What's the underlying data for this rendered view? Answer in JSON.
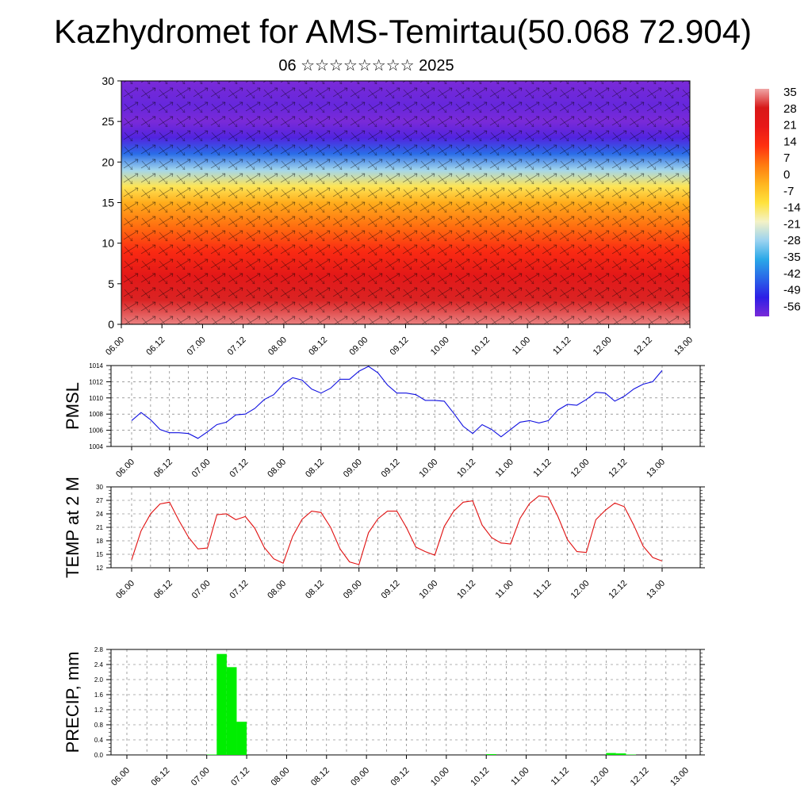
{
  "page": {
    "title": "Kazhydromet for AMS-Temirtau(50.068 72.904)",
    "subtitle": "06 ☆☆☆☆☆☆☆☆ 2025"
  },
  "colorbar": {
    "labels": [
      "35",
      "28",
      "21",
      "14",
      "7",
      "0",
      "-7",
      "-14",
      "-21",
      "-28",
      "-35",
      "-42",
      "-49",
      "-56"
    ],
    "min": -56,
    "max": 35,
    "stops": [
      "#7a2ad8",
      "#2d1ee6",
      "#2a66e8",
      "#2aa8e8",
      "#9bd3f0",
      "#f4f2c6",
      "#ffe23b",
      "#ffb41e",
      "#ff7a10",
      "#ff3010",
      "#e81818",
      "#d81818",
      "#f0a6a6"
    ]
  },
  "chart_data": [
    {
      "type": "heatmap",
      "name": "level-temperature-wind",
      "ylim": [
        0,
        30
      ],
      "yticks": [
        0,
        5,
        10,
        15,
        20,
        25,
        30
      ],
      "xticks": [
        "06.00",
        "06.12",
        "07.00",
        "07.12",
        "08.00",
        "08.12",
        "09.00",
        "09.12",
        "10.00",
        "10.12",
        "11.00",
        "11.12",
        "12.00",
        "12.12",
        "13.00"
      ],
      "profile": [
        {
          "level": 0,
          "value": 33
        },
        {
          "level": 3,
          "value": 28
        },
        {
          "level": 6,
          "value": 22
        },
        {
          "level": 9,
          "value": 14
        },
        {
          "level": 12,
          "value": 6
        },
        {
          "level": 15,
          "value": -2
        },
        {
          "level": 17,
          "value": -12
        },
        {
          "level": 19,
          "value": -25
        },
        {
          "level": 21,
          "value": -40
        },
        {
          "level": 23,
          "value": -52
        },
        {
          "level": 25,
          "value": -56
        },
        {
          "level": 27,
          "value": -54
        },
        {
          "level": 30,
          "value": -58
        }
      ]
    },
    {
      "type": "line",
      "ylabel": "PMSL",
      "ylim": [
        1004,
        1014
      ],
      "yticks": [
        1004,
        1006,
        1008,
        1010,
        1012,
        1014
      ],
      "xticks": [
        "06.00",
        "06.12",
        "07.00",
        "07.12",
        "08.00",
        "08.12",
        "09.00",
        "09.12",
        "10.00",
        "10.12",
        "11.00",
        "11.12",
        "12.00",
        "12.12",
        "13.00"
      ],
      "color": "#1010e0",
      "x": [
        0,
        3,
        6,
        9,
        12,
        15,
        18,
        21,
        24,
        27,
        30,
        33,
        36,
        39,
        42,
        45,
        48,
        51,
        54,
        57,
        60,
        63,
        66,
        69,
        72,
        75,
        78,
        81,
        84,
        87,
        90,
        93,
        96,
        99,
        102,
        105,
        108,
        111,
        114,
        117,
        120,
        123,
        126,
        129,
        132,
        135,
        138,
        141,
        144,
        147,
        150,
        153,
        156,
        159,
        162,
        165,
        168
      ],
      "values": [
        1007.2,
        1008.2,
        1007.3,
        1006.1,
        1005.7,
        1005.7,
        1005.6,
        1005.0,
        1005.8,
        1006.7,
        1007.0,
        1007.9,
        1008.0,
        1008.7,
        1009.8,
        1010.4,
        1011.7,
        1012.5,
        1012.2,
        1011.1,
        1010.6,
        1011.2,
        1012.3,
        1012.3,
        1013.3,
        1013.9,
        1013.1,
        1011.6,
        1010.6,
        1010.6,
        1010.4,
        1009.7,
        1009.7,
        1009.6,
        1008.1,
        1006.5,
        1005.6,
        1006.7,
        1006.1,
        1005.2,
        1006.1,
        1007.0,
        1007.2,
        1006.9,
        1007.2,
        1008.5,
        1009.2,
        1009.1,
        1009.8,
        1010.7,
        1010.6,
        1009.6,
        1010.2,
        1011.1,
        1011.7,
        1012.0,
        1013.4
      ]
    },
    {
      "type": "line",
      "ylabel": "TEMP at 2 M",
      "ylim": [
        12,
        30
      ],
      "yticks": [
        12,
        15,
        18,
        21,
        24,
        27,
        30
      ],
      "xticks": [
        "06.00",
        "06.12",
        "07.00",
        "07.12",
        "08.00",
        "08.12",
        "09.00",
        "09.12",
        "10.00",
        "10.12",
        "11.00",
        "11.12",
        "12.00",
        "12.12",
        "13.00"
      ],
      "color": "#e01010",
      "x": [
        0,
        3,
        6,
        9,
        12,
        15,
        18,
        21,
        24,
        27,
        30,
        33,
        36,
        39,
        42,
        45,
        48,
        51,
        54,
        57,
        60,
        63,
        66,
        69,
        72,
        75,
        78,
        81,
        84,
        87,
        90,
        93,
        96,
        99,
        102,
        105,
        108,
        111,
        114,
        117,
        120,
        123,
        126,
        129,
        132,
        135,
        138,
        141,
        144,
        147,
        150,
        153,
        156,
        159,
        162,
        165,
        168
      ],
      "values": [
        13.8,
        20.2,
        24.0,
        26.2,
        26.6,
        22.5,
        18.8,
        16.2,
        16.4,
        23.8,
        24.0,
        22.7,
        23.4,
        20.8,
        16.5,
        14.0,
        13.0,
        19.0,
        22.8,
        24.6,
        24.3,
        21.0,
        16.2,
        13.3,
        12.7,
        19.8,
        22.9,
        24.6,
        24.6,
        21.0,
        16.6,
        15.6,
        14.8,
        21.2,
        24.6,
        26.6,
        26.9,
        21.5,
        18.7,
        17.5,
        17.3,
        23.0,
        26.3,
        28.0,
        27.7,
        23.4,
        18.3,
        15.6,
        15.4,
        22.7,
        24.8,
        26.4,
        25.6,
        21.5,
        16.8,
        14.3,
        13.5
      ]
    },
    {
      "type": "bar",
      "ylabel": "PRECIP, mm",
      "ylim": [
        0.0,
        2.8
      ],
      "yticks": [
        "0.0",
        "0.4",
        "0.8",
        "1.2",
        "1.6",
        "2.0",
        "2.4",
        "2.8"
      ],
      "xticks": [
        "06.00",
        "06.12",
        "07.00",
        "07.12",
        "08.00",
        "08.12",
        "09.00",
        "09.12",
        "10.00",
        "10.12",
        "11.00",
        "11.12",
        "12.00",
        "12.12",
        "13.00"
      ],
      "color": "#00ee00",
      "bar_hours": 3,
      "x": [
        24,
        27,
        30,
        33,
        108,
        144,
        147,
        150
      ],
      "values": [
        0.01,
        2.68,
        2.33,
        0.88,
        0.02,
        0.05,
        0.04,
        0.01
      ]
    }
  ]
}
